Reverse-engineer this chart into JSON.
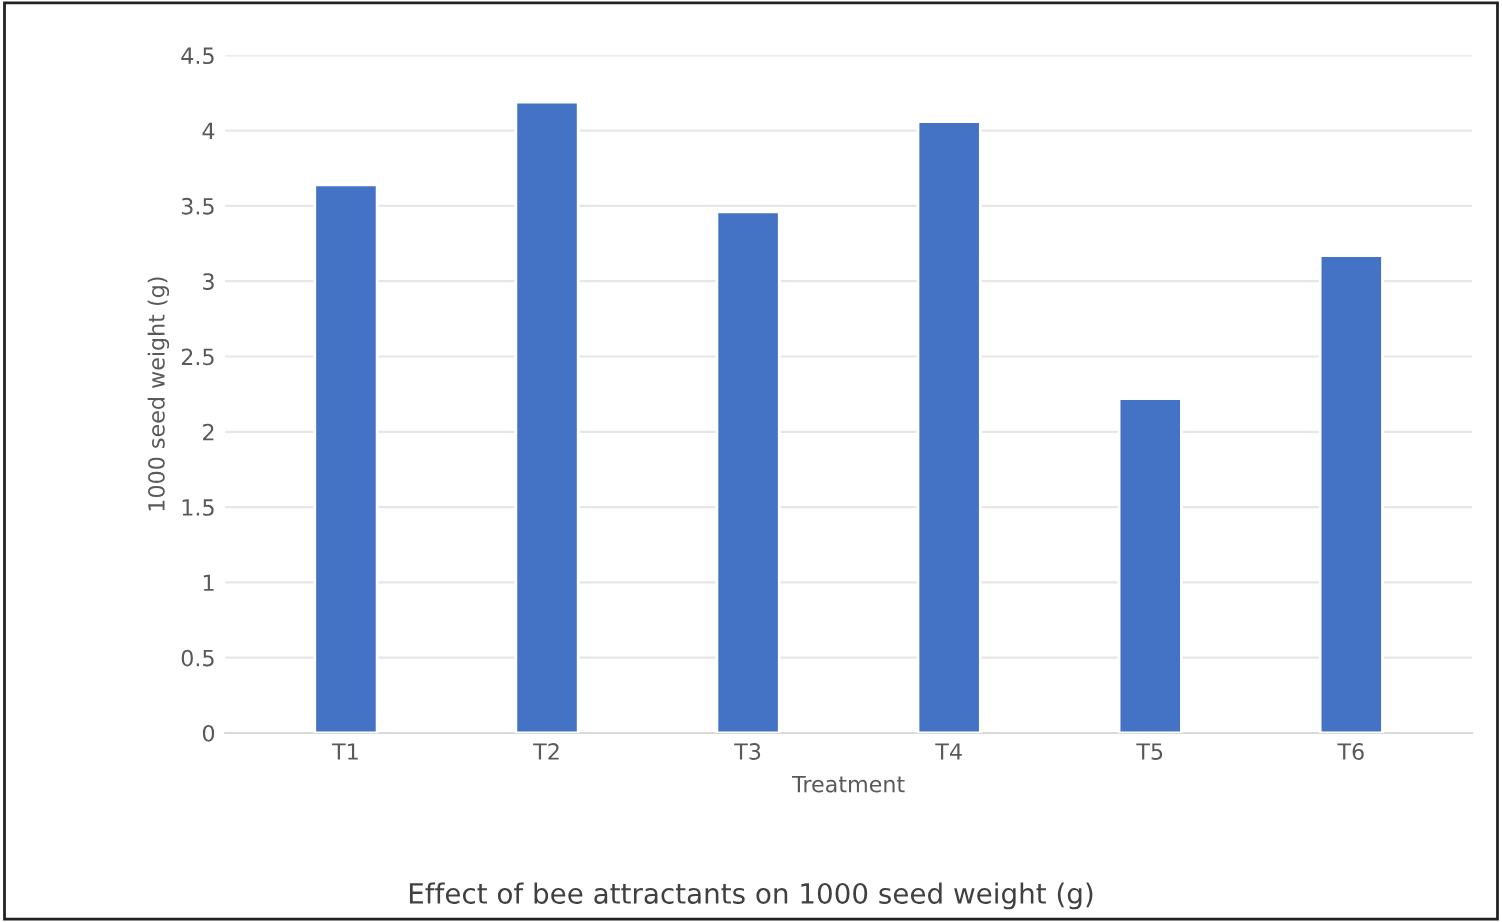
{
  "chart_data": {
    "type": "bar",
    "title": "Effect of bee attractants on 1000 seed weight (g)",
    "xlabel": "Treatment",
    "ylabel": "1000 seed weight (g)",
    "categories": [
      "T1",
      "T2",
      "T3",
      "T4",
      "T5",
      "T6"
    ],
    "values": [
      3.64,
      4.19,
      3.46,
      4.06,
      2.22,
      3.17
    ],
    "color": "#4472c4",
    "ylim": [
      0,
      4.5
    ],
    "yticks": [
      0,
      0.5,
      1,
      1.5,
      2,
      2.5,
      3,
      3.5,
      4,
      4.5
    ],
    "grid": "y"
  }
}
